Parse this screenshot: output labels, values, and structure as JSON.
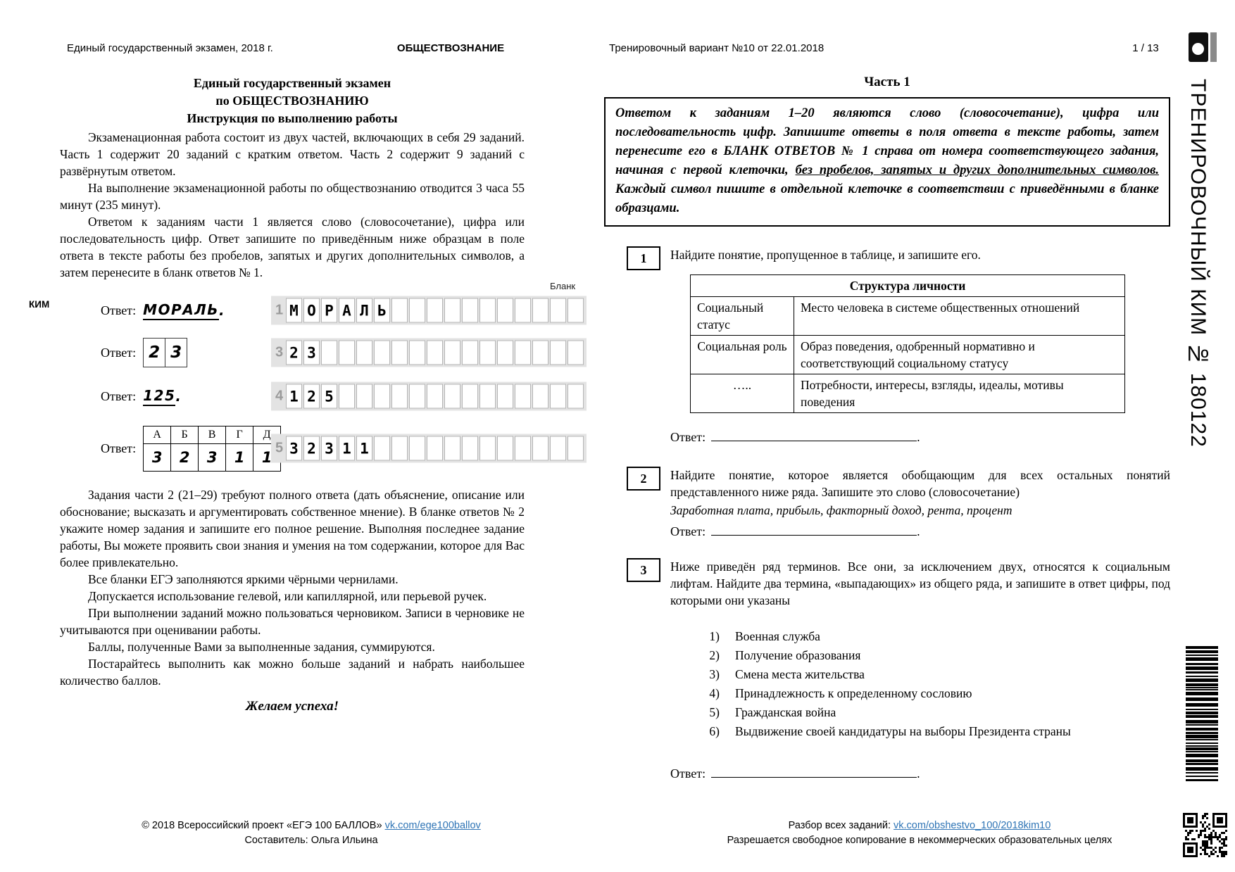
{
  "header": {
    "left": "Единый государственный экзамен, 2018 г.",
    "center": "ОБЩЕСТВОЗНАНИЕ",
    "right": "Тренировочный вариант №10 от 22.01.2018",
    "page_number": "1 / 13"
  },
  "sidebar": {
    "vertical_label": "ТРЕНИРОВОЧНЫЙ КИМ № 180122"
  },
  "left": {
    "title_line1": "Единый государственный экзамен",
    "title_line2": "по ОБЩЕСТВОЗНАНИЮ",
    "title_line3": "Инструкция по выполнению работы",
    "paragraphs_top": [
      "Экзаменационная работа состоит из двух частей, включающих в себя 29 заданий. Часть 1 содержит 20 заданий с кратким ответом. Часть 2 содержит 9 заданий с развёрнутым ответом.",
      "На выполнение экзаменационной работы по обществознанию отводится 3 часа 55 минут (235 минут).",
      "Ответом к заданиям части 1 является слово (словосочетание), цифра или последовательность цифр. Ответ запишите по приведённым ниже образцам в поле ответа в тексте работы без пробелов, запятых и других дополнительных символов, а затем перенесите в бланк ответов № 1."
    ],
    "samples": {
      "kim_label": "КИМ",
      "blank_label": "Бланк",
      "grid_total_cells": 17,
      "rows": [
        {
          "label": "Ответ:",
          "hand_value": "МОРАЛЬ",
          "hand_suffix": ".",
          "underline": true,
          "grid_num": "1",
          "grid_chars": "МОРАЛЬ"
        },
        {
          "label": "Ответ:",
          "boxed_digits": [
            "2",
            "3"
          ],
          "grid_num": "3",
          "grid_chars": "23"
        },
        {
          "label": "Ответ:",
          "hand_value": "125",
          "hand_suffix": ".",
          "underline": true,
          "grid_num": "4",
          "grid_chars": "125"
        },
        {
          "label": "Ответ:",
          "match_header": [
            "А",
            "Б",
            "В",
            "Г",
            "Д"
          ],
          "match_values": [
            "3",
            "2",
            "3",
            "1",
            "1"
          ],
          "grid_num": "5",
          "grid_chars": "32311"
        }
      ]
    },
    "paragraphs_bottom": [
      "Задания части 2 (21–29) требуют полного ответа (дать объяснение, описание или обоснование; высказать и аргументировать собственное мнение). В бланке ответов № 2 укажите номер задания и запишите его полное решение. Выполняя последнее задание работы, Вы можете проявить свои знания и умения на том содержании, которое для Вас более привлекательно.",
      "Все бланки ЕГЭ заполняются яркими чёрными чернилами.",
      "Допускается использование гелевой, или капиллярной, или перьевой ручек.",
      "При выполнении заданий можно пользоваться черновиком. Записи в черновике не учитываются при оценивании работы.",
      "Баллы, полученные Вами за выполненные задания, суммируются.",
      "Постарайтесь выполнить как можно больше заданий и набрать наибольшее количество баллов."
    ],
    "wish": "Желаем успеха!"
  },
  "right": {
    "part_title": "Часть 1",
    "instruction_segments": [
      {
        "text": "Ответом к заданиям 1–20 являются слово (словосочетание), цифра или последовательность цифр. Запишите ответы в поля ответа в тексте работы, затем перенесите его в БЛАНК ОТВЕТОВ № 1 справа от номера соответствующего задания, начиная с первой клеточки, ",
        "underline": false
      },
      {
        "text": "без пробелов, запятых и других дополнительных символов.",
        "underline": true
      },
      {
        "text": " Каждый символ пишите в отдельной клеточке в соответствии с приведёнными в бланке образцами.",
        "underline": false
      }
    ],
    "q1": {
      "number": "1",
      "text": "Найдите понятие, пропущенное в таблице, и запишите его.",
      "table": {
        "title": "Структура личности",
        "rows": [
          {
            "term": "Социальный статус",
            "definition": "Место человека в системе общественных отношений",
            "term_center": false
          },
          {
            "term": "Социальная роль",
            "definition": "Образ поведения, одобренный нормативно и соответствующий социальному статусу",
            "term_center": true
          },
          {
            "term": "…..",
            "definition": "Потребности, интересы, взгляды, идеалы, мотивы поведения",
            "term_center": true
          }
        ]
      },
      "answer_label": "Ответ:",
      "answer_suffix": "."
    },
    "q2": {
      "number": "2",
      "text": "Найдите понятие, которое является обобщающим для всех остальных понятий представленного ниже ряда. Запишите это слово (словосочетание)",
      "series": "Заработная плата, прибыль,  факторный доход,  рента, процент",
      "answer_label": "Ответ:",
      "answer_suffix": "."
    },
    "q3": {
      "number": "3",
      "text": "Ниже приведён ряд терминов. Все они, за исключением двух, относятся к социальным лифтам. Найдите два термина, «выпадающих» из общего ряда, и запишите в ответ цифры, под которыми они указаны",
      "items": [
        {
          "n": "1)",
          "text": "Военная служба"
        },
        {
          "n": "2)",
          "text": "Получение образования"
        },
        {
          "n": "3)",
          "text": "Смена места жительства"
        },
        {
          "n": "4)",
          "text": "Принадлежность к определенному сословию"
        },
        {
          "n": "5)",
          "text": "Гражданская война"
        },
        {
          "n": "6)",
          "text": "Выдвижение своей кандидатуры на выборы Президента страны"
        }
      ],
      "answer_label": "Ответ:",
      "answer_suffix": "."
    }
  },
  "footer": {
    "left_copyright": "© 2018 Всероссийский проект «ЕГЭ 100 БАЛЛОВ» ",
    "left_link": "vk.com/ege100ballov",
    "left_author": "Составитель: Ольга Ильина",
    "right_label": "Разбор всех заданий: ",
    "right_link": "vk.com/obshestvo_100/2018kim10",
    "right_license": "Разрешается свободное копирование в некоммерческих образовательных целях"
  },
  "colors": {
    "link": "#2e74b5",
    "grid_background": "#e3e3e3",
    "grid_cell_border": "#b5b5b5",
    "grid_number": "#9a9a9a"
  }
}
